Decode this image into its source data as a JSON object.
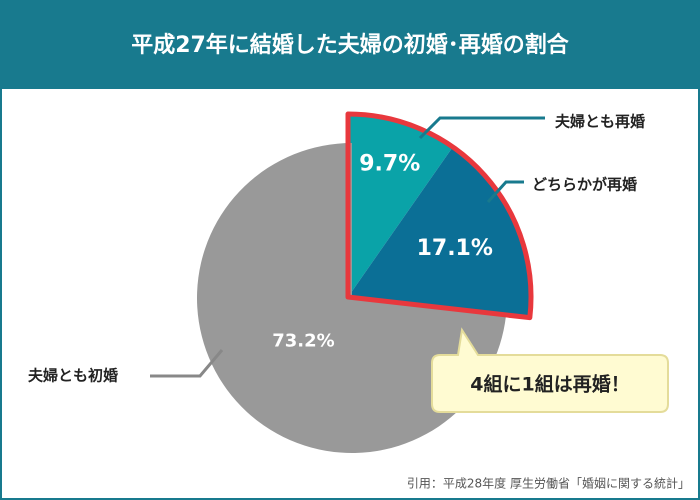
{
  "chart_data": {
    "type": "pie",
    "title": "平成27年に結婚した夫婦の初婚･再婚の割合",
    "categories": [
      "夫婦とも再婚",
      "どちらかが再婚",
      "夫婦とも初婚"
    ],
    "values": [
      9.7,
      17.1,
      73.2
    ],
    "value_labels": [
      "9.7%",
      "17.1%",
      "73.2%"
    ],
    "colors": [
      "#0aa3a8",
      "#0b6f96",
      "#999999"
    ],
    "annotation": "4組に1組は再婚！",
    "source": "引用：平成28年度 厚生労働省「婚姻に関する統計」"
  }
}
